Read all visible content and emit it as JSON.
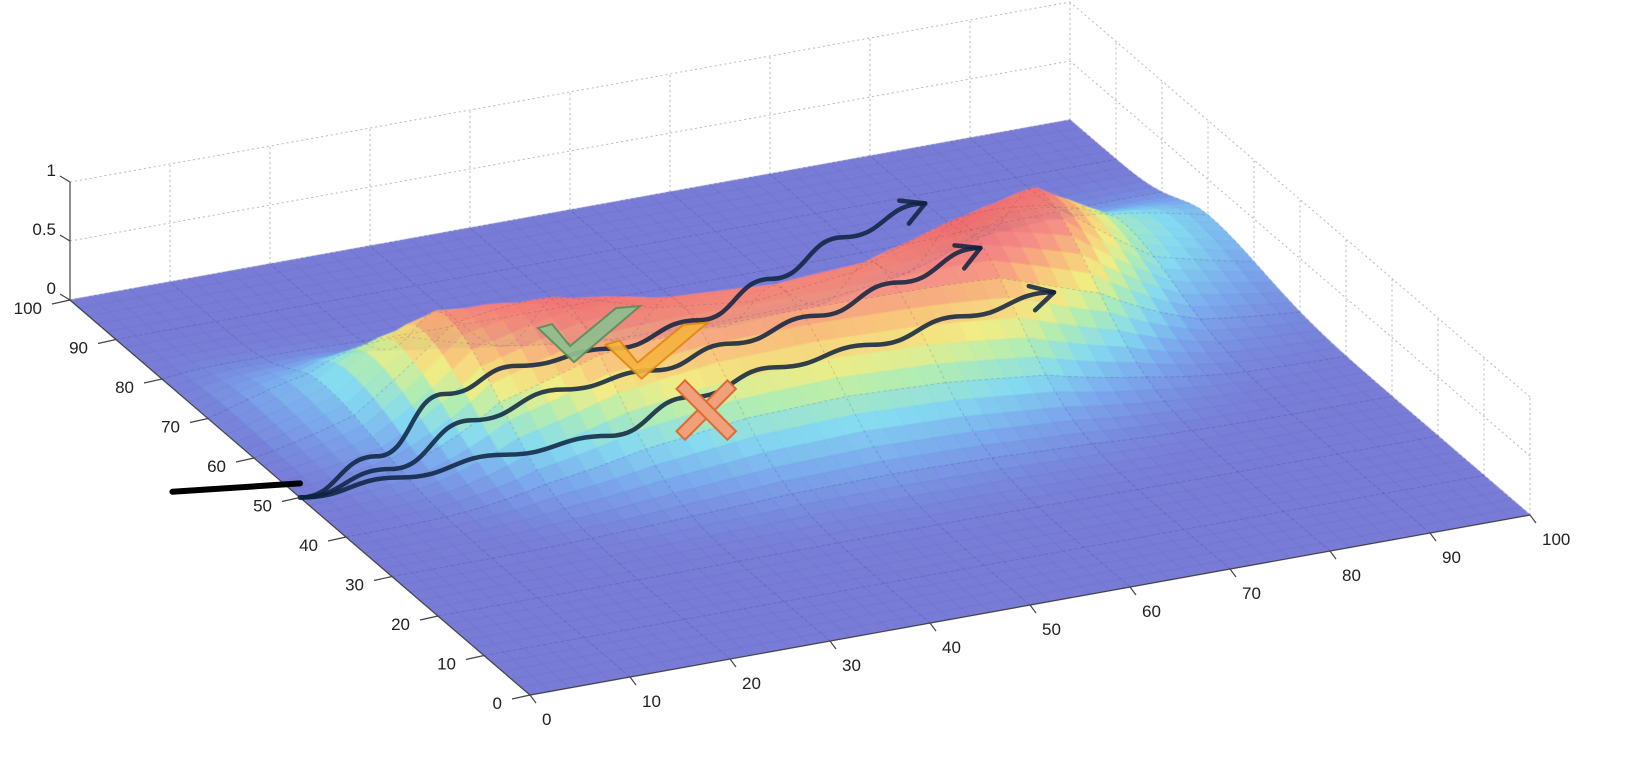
{
  "colors": {
    "accent_check_good": "#8fbf8f",
    "accent_check_ok": "#f5b441",
    "accent_cross": "#f0a07a",
    "trajectory": "#0d2240",
    "surface_low": "#6a6fd2",
    "surface_high": "#f4837a"
  },
  "chart_data": {
    "type": "surface",
    "title": "",
    "xlabel": "",
    "ylabel": "",
    "zlabel": "",
    "xlim": [
      0,
      100
    ],
    "ylim": [
      0,
      100
    ],
    "zlim": [
      0,
      1
    ],
    "grid": true,
    "x_ticks": [
      "0",
      "10",
      "20",
      "30",
      "40",
      "50",
      "60",
      "70",
      "80",
      "90",
      "100"
    ],
    "y_ticks": [
      "0",
      "10",
      "20",
      "30",
      "40",
      "50",
      "60",
      "70",
      "80",
      "90",
      "100"
    ],
    "z_ticks": [
      "0",
      "0.5",
      "1"
    ],
    "ridge_profile": {
      "x": [
        0,
        10,
        20,
        30,
        40,
        50,
        60,
        70,
        80,
        90,
        100
      ],
      "center_y": [
        72,
        67,
        62,
        58,
        55,
        54,
        55,
        58,
        63,
        67,
        70
      ],
      "z": [
        0.0,
        0.25,
        0.85,
        0.95,
        0.9,
        0.88,
        0.9,
        1.0,
        0.95,
        0.4,
        0.2
      ]
    },
    "series": [
      {
        "x": [
          0,
          10,
          20,
          30,
          40,
          50,
          60,
          70,
          80
        ],
        "y": [
          50,
          55,
          62,
          68,
          69,
          72,
          78,
          84,
          88
        ]
      },
      {
        "x": [
          0,
          10,
          20,
          30,
          40,
          50,
          60,
          70,
          80
        ],
        "y": [
          50,
          52,
          56,
          58,
          60,
          65,
          68,
          72,
          76
        ]
      },
      {
        "x": [
          0,
          10,
          20,
          30,
          40,
          50,
          60,
          70,
          80
        ],
        "y": [
          50,
          50,
          49,
          48,
          52,
          55,
          56,
          58,
          60
        ]
      }
    ],
    "markers": [
      {
        "symbol": "check-mark",
        "color": "#8fbf8f",
        "x": 38,
        "y": 70
      },
      {
        "symbol": "check-mark",
        "color": "#f5b441",
        "x": 42,
        "y": 64
      },
      {
        "symbol": "cross-mark",
        "color": "#f0a07a",
        "x": 42,
        "y": 53
      }
    ]
  }
}
